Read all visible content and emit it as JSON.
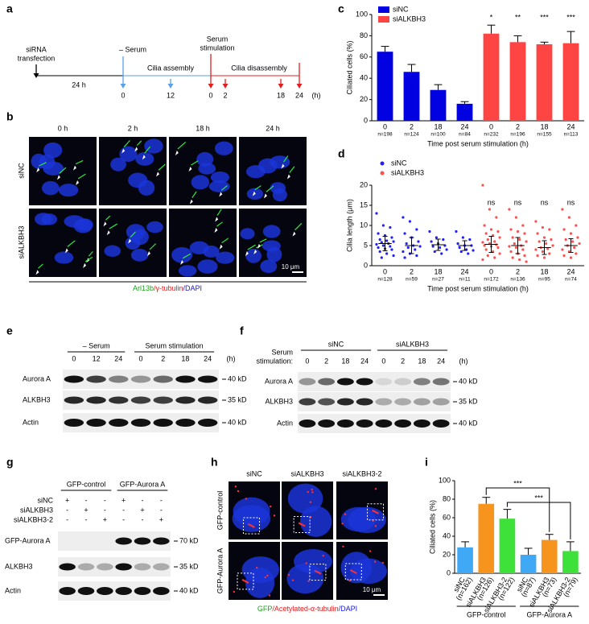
{
  "panel_labels": [
    "a",
    "b",
    "c",
    "d",
    "e",
    "f",
    "g",
    "h",
    "i"
  ],
  "timeline": {
    "start": [
      "siRNA",
      "transfection"
    ],
    "first_interval": "24 h",
    "serum_off": "– Serum",
    "assembly": "Cilia assembly",
    "serum_on": [
      "Serum",
      "stimulation"
    ],
    "disassembly": "Cilia disassembly",
    "ticks": [
      "0",
      "12",
      "0",
      "2",
      "18",
      "24"
    ],
    "unit": "(h)"
  },
  "microscopy_b": {
    "columns": [
      "0 h",
      "2 h",
      "18 h",
      "24 h"
    ],
    "rows": [
      "siNC",
      "siALKBH3"
    ],
    "scale_bar": "10 μm",
    "stain": [
      "Arl13b",
      "/γ-tubulin",
      "/DAPI"
    ]
  },
  "chart_data": [
    {
      "type": "bar",
      "y_label": "Ciliated cells (%)",
      "x_label": "Time post serum stimulation (h)",
      "categories": [
        "0",
        "2",
        "18",
        "24",
        "0",
        "2",
        "18",
        "24"
      ],
      "sample_sizes": [
        "n=198",
        "n=124",
        "n=100",
        "n=84",
        "n=232",
        "n=196",
        "n=155",
        "n=113"
      ],
      "series": [
        {
          "name": "siNC",
          "color": "#0000e0",
          "values": [
            65,
            46,
            29,
            16,
            null,
            null,
            null,
            null
          ],
          "errors": [
            5,
            7,
            5,
            2,
            null,
            null,
            null,
            null
          ]
        },
        {
          "name": "siALKBH3",
          "color": "#ff4444",
          "values": [
            null,
            null,
            null,
            null,
            82,
            74,
            72,
            73
          ],
          "errors": [
            null,
            null,
            null,
            null,
            8,
            6,
            2,
            11
          ]
        }
      ],
      "significance": [
        null,
        null,
        null,
        null,
        "*",
        "**",
        "***",
        "***"
      ],
      "ylim": [
        0,
        100
      ],
      "yticks": [
        0,
        20,
        40,
        60,
        80,
        100
      ]
    },
    {
      "type": "strip",
      "y_label": "Cilia length (μm)",
      "x_label": "Time post serum stimulation (h)",
      "categories": [
        "0",
        "2",
        "18",
        "24",
        "0",
        "2",
        "18",
        "24"
      ],
      "sample_sizes": [
        "n=128",
        "n=59",
        "n=27",
        "n=11",
        "n=172",
        "n=136",
        "n=95",
        "n=74"
      ],
      "series": [
        {
          "name": "siNC",
          "color": "#2020ff",
          "points": [
            [
              13,
              10,
              9.5,
              8,
              7.5,
              7,
              6.5,
              6.2,
              6,
              5.8,
              5.5,
              5.3,
              5,
              4.8,
              4.5,
              4.2,
              4,
              3.5,
              3,
              2.5,
              2
            ],
            [
              12,
              11,
              9,
              8,
              7,
              6,
              5.5,
              5,
              4.8,
              4.5,
              4,
              3.5,
              3,
              2.5,
              2
            ],
            [
              8.5,
              7,
              6.5,
              6,
              5.5,
              5,
              4.8,
              4.5,
              4,
              3.5,
              3
            ],
            [
              8.5,
              7,
              6.5,
              5.5,
              5,
              5,
              4.5,
              4,
              3.8,
              3.5,
              3
            ],
            null,
            null,
            null,
            null
          ],
          "means": [
            5.5,
            5,
            5.2,
            5,
            null,
            null,
            null,
            null
          ],
          "sds": [
            1.8,
            2,
            1.4,
            1.2,
            null,
            null,
            null,
            null
          ]
        },
        {
          "name": "siALKBH3",
          "color": "#ff5050",
          "points": [
            null,
            null,
            null,
            null,
            [
              20,
              14,
              12,
              10,
              9,
              8.5,
              8,
              7.5,
              7,
              6.5,
              6,
              5.8,
              5.5,
              5.2,
              5,
              4.8,
              4.5,
              4,
              3.5,
              3,
              2.5,
              2,
              1.5
            ],
            [
              14,
              12,
              10,
              9,
              8.5,
              8,
              7,
              6.5,
              6,
              5.5,
              5,
              4.8,
              4.5,
              4,
              3.5,
              3,
              2.5,
              2,
              1.5,
              1
            ],
            [
              11,
              9.5,
              9,
              8,
              7,
              6.5,
              6,
              5.5,
              5,
              4.5,
              4.2,
              4,
              3.5,
              3,
              2.5,
              2
            ],
            [
              14,
              12,
              10,
              9,
              8,
              7,
              6.5,
              6,
              5.5,
              5,
              4.5,
              4,
              3.5,
              3,
              2.5,
              2
            ]
          ],
          "means": [
            null,
            null,
            null,
            null,
            5.3,
            5,
            4.5,
            5
          ],
          "sds": [
            null,
            null,
            null,
            null,
            2,
            2,
            1.7,
            1.7
          ]
        }
      ],
      "significance": [
        null,
        null,
        null,
        null,
        "ns",
        "ns",
        "ns",
        "ns"
      ],
      "ylim": [
        0,
        20
      ],
      "yticks": [
        0,
        5,
        10,
        15,
        20
      ]
    },
    {
      "type": "bar",
      "y_label": "Ciliated cells (%)",
      "categories": [
        "siNC",
        "siALKBH3",
        "siALKBH3-2",
        "siNC",
        "siALKBH3",
        "siALKBH3-2"
      ],
      "sample_sizes": [
        "(n=162)",
        "(n=126)",
        "(n=122)",
        "(n=87)",
        "(n=73)",
        "(n=79)"
      ],
      "values": [
        28,
        75,
        59,
        20,
        36,
        24
      ],
      "errors": [
        6,
        7,
        10,
        7,
        6,
        10
      ],
      "colors": [
        "#3fa9f5",
        "#f7941d",
        "#3ee03a",
        "#3fa9f5",
        "#f7941d",
        "#3ee03a"
      ],
      "group_labels": [
        "GFP-control",
        "GFP-Aurora A"
      ],
      "significance": [
        "***",
        "***"
      ],
      "ylim": [
        0,
        100
      ],
      "yticks": [
        0,
        20,
        40,
        60,
        80,
        100
      ]
    }
  ],
  "blot_e": {
    "groups": [
      "– Serum",
      "Serum stimulation"
    ],
    "lanes": [
      "0",
      "12",
      "24",
      "0",
      "2",
      "18",
      "24"
    ],
    "unit": "(h)",
    "rows": [
      "Aurora A",
      "ALKBH3",
      "Actin"
    ],
    "sizes": [
      "40 kD",
      "35 kD",
      "40 kD"
    ]
  },
  "blot_f": {
    "groups": [
      "siNC",
      "siALKBH3"
    ],
    "lane_title": [
      "Serum",
      "stimulation:"
    ],
    "lanes": [
      "0",
      "2",
      "18",
      "24",
      "0",
      "2",
      "18",
      "24"
    ],
    "unit": "(h)",
    "rows": [
      "Aurora A",
      "ALKBH3",
      "Actin"
    ],
    "sizes": [
      "40 kD",
      "35 kD",
      "40 kD"
    ]
  },
  "blot_g": {
    "groups": [
      "GFP-control",
      "GFP-Aurora A"
    ],
    "conditions": [
      {
        "name": "siNC",
        "signs": [
          "+",
          "-",
          "-",
          "+",
          "-",
          "-"
        ]
      },
      {
        "name": "siALKBH3",
        "signs": [
          "-",
          "+",
          "-",
          "-",
          "+",
          "-"
        ]
      },
      {
        "name": "siALKBH3-2",
        "signs": [
          "-",
          "-",
          "+",
          "-",
          "-",
          "+"
        ]
      }
    ],
    "rows": [
      "GFP-Aurora A",
      "ALKBH3",
      "Actin"
    ],
    "sizes": [
      "70 kD",
      "35 kD",
      "40 kD"
    ]
  },
  "microscopy_h": {
    "columns": [
      "siNC",
      "siALKBH3",
      "siALKBH3-2"
    ],
    "rows": [
      "GFP-control",
      "GFP-Aurora A"
    ],
    "scale_bar": "10 μm",
    "stain": [
      "GFP",
      "/Acetylated-α-tubulin",
      "/DAPI"
    ]
  }
}
